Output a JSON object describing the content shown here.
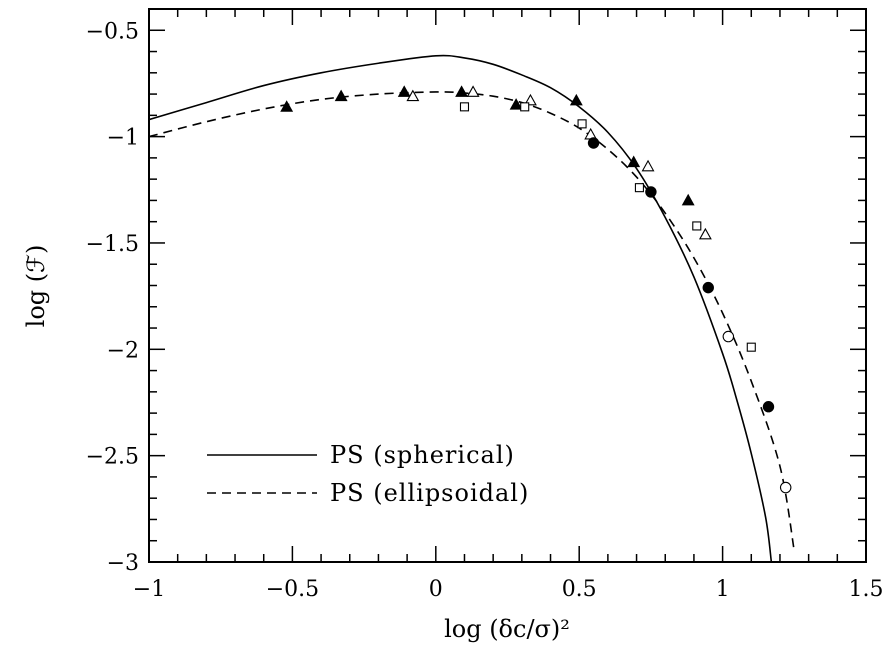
{
  "chart_data": {
    "type": "line",
    "title": "",
    "xlabel": "log (δc/σ)²",
    "ylabel": "log (ℱ)",
    "xlim": [
      -1,
      1.5
    ],
    "ylim": [
      -3,
      -0.4
    ],
    "x_ticks": [
      -1,
      -0.5,
      0,
      0.5,
      1,
      1.5
    ],
    "x_tick_labels": [
      "−1",
      "−0.5",
      "0",
      "0.5",
      "1",
      "1.5"
    ],
    "y_ticks": [
      -0.5,
      -1,
      -1.5,
      -2,
      -2.5,
      -3
    ],
    "y_tick_labels": [
      "−0.5",
      "−1",
      "−1.5",
      "−2",
      "−2.5",
      "−3"
    ],
    "grid": false,
    "legend_position": "bottom-left",
    "series": [
      {
        "name": "PS (spherical)",
        "style": "solid",
        "x": [
          -1.0,
          -0.8,
          -0.6,
          -0.4,
          -0.2,
          0.0,
          0.1,
          0.2,
          0.3,
          0.4,
          0.5,
          0.6,
          0.7,
          0.8,
          0.9,
          1.0,
          1.05,
          1.1,
          1.15,
          1.17
        ],
        "y": [
          -0.92,
          -0.84,
          -0.76,
          -0.7,
          -0.655,
          -0.62,
          -0.63,
          -0.66,
          -0.71,
          -0.77,
          -0.86,
          -0.98,
          -1.15,
          -1.38,
          -1.66,
          -2.02,
          -2.24,
          -2.49,
          -2.79,
          -3.0
        ]
      },
      {
        "name": "PS (ellipsoidal)",
        "style": "dashed",
        "x": [
          -1.0,
          -0.8,
          -0.6,
          -0.4,
          -0.2,
          0.0,
          0.1,
          0.2,
          0.3,
          0.4,
          0.5,
          0.6,
          0.7,
          0.8,
          0.9,
          1.0,
          1.1,
          1.2,
          1.25
        ],
        "y": [
          -1.0,
          -0.93,
          -0.87,
          -0.825,
          -0.8,
          -0.79,
          -0.795,
          -0.81,
          -0.84,
          -0.89,
          -0.96,
          -1.06,
          -1.19,
          -1.36,
          -1.57,
          -1.83,
          -2.15,
          -2.55,
          -2.95
        ]
      }
    ],
    "markers": [
      {
        "symbol": "filled-triangle",
        "x": [
          -0.52,
          -0.33,
          -0.11,
          0.09,
          0.28,
          0.49,
          0.69,
          0.88
        ],
        "y": [
          -0.86,
          -0.81,
          -0.79,
          -0.79,
          -0.85,
          -0.83,
          -1.12,
          -1.3
        ]
      },
      {
        "symbol": "open-triangle",
        "x": [
          -0.08,
          0.13,
          0.33,
          0.54,
          0.74,
          0.94
        ],
        "y": [
          -0.81,
          -0.79,
          -0.83,
          -0.99,
          -1.14,
          -1.46
        ]
      },
      {
        "symbol": "open-square",
        "x": [
          0.1,
          0.31,
          0.51,
          0.71,
          0.91,
          1.1
        ],
        "y": [
          -0.86,
          -0.86,
          -0.94,
          -1.24,
          -1.42,
          -1.99
        ]
      },
      {
        "symbol": "filled-circle",
        "x": [
          0.55,
          0.75,
          0.95,
          1.16
        ],
        "y": [
          -1.03,
          -1.26,
          -1.71,
          -2.27
        ]
      },
      {
        "symbol": "open-circle",
        "x": [
          1.02,
          1.22
        ],
        "y": [
          -1.94,
          -2.65
        ]
      }
    ]
  }
}
